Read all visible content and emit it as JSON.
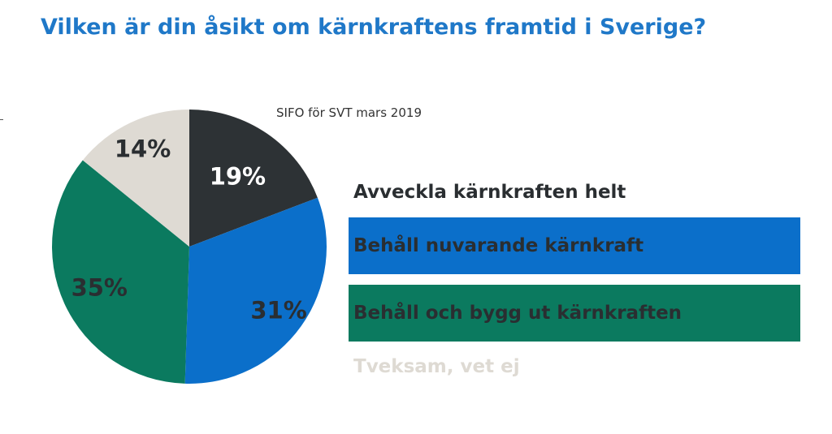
{
  "title": "Vilken är din åsikt om kärnkraftens framtid i Sverige?",
  "source": "SIFO för SVT mars 2019",
  "chart_data": {
    "type": "pie",
    "title": "Vilken är din åsikt om kärnkraftens framtid i Sverige?",
    "slices": [
      {
        "label": "Avveckla kärnkraften helt",
        "value": 19,
        "display": "19%",
        "color": "#2d3235",
        "text_color": "#ffffff"
      },
      {
        "label": "Behåll nuvarande kärnkraft",
        "value": 31,
        "display": "31%",
        "color": "#0b6fca",
        "text_color": "#2a2e31"
      },
      {
        "label": "Behåll och bygg ut kärnkraften",
        "value": 35,
        "display": "35%",
        "color": "#0b7a5f",
        "text_color": "#2a2e31"
      },
      {
        "label": "Tveksam, vet ej",
        "value": 14,
        "display": "14%",
        "color": "#dedad3",
        "text_color": "#2a2e31"
      }
    ],
    "legend_placement": "right"
  },
  "legend": {
    "items": [
      {
        "label": "Avveckla kärnkraften helt",
        "background": "transparent",
        "text_color": "#2a2e31"
      },
      {
        "label": "Behåll nuvarande kärnkraft",
        "background": "#0b6fca",
        "text_color": "#2a2e31"
      },
      {
        "label": "Behåll och bygg ut kärnkraften",
        "background": "#0b7a5f",
        "text_color": "#2a2e31"
      },
      {
        "label": "Tveksam, vet ej",
        "background": "transparent",
        "text_color": "#dedad3"
      }
    ]
  }
}
